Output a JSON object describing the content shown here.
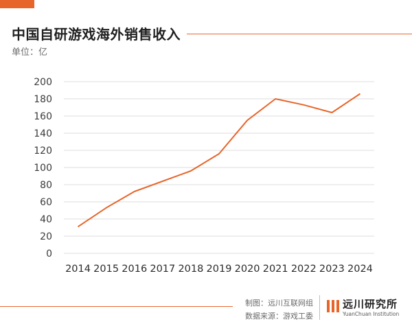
{
  "colors": {
    "accent": "#E8652A",
    "grid": "#DDDDDD",
    "text": "#2B2B2B",
    "muted": "#6B6B6B"
  },
  "header": {
    "title": "中国自研游戏海外销售收入",
    "unit": "单位：亿"
  },
  "chart_data": {
    "type": "line",
    "title": "中国自研游戏海外销售收入",
    "ylabel": "单位：亿",
    "xlabel": "",
    "x": [
      "2014",
      "2015",
      "2016",
      "2017",
      "2018",
      "2019",
      "2020",
      "2021",
      "2022",
      "2023",
      "2024"
    ],
    "series": [
      {
        "values": [
          31,
          53,
          72,
          84,
          96,
          116,
          155,
          180,
          173,
          164,
          186
        ]
      }
    ],
    "yticks": [
      "0",
      "20",
      "40",
      "60",
      "80",
      "100",
      "120",
      "140",
      "160",
      "180",
      "200"
    ],
    "ylim": [
      0,
      200
    ],
    "grid": true,
    "legend": "none"
  },
  "footer": {
    "made_by": "制图：远川互联网组",
    "source": "数据来源：游戏工委",
    "logo_name": "远川研究所",
    "logo_sub": "YuanChuan Institution"
  }
}
